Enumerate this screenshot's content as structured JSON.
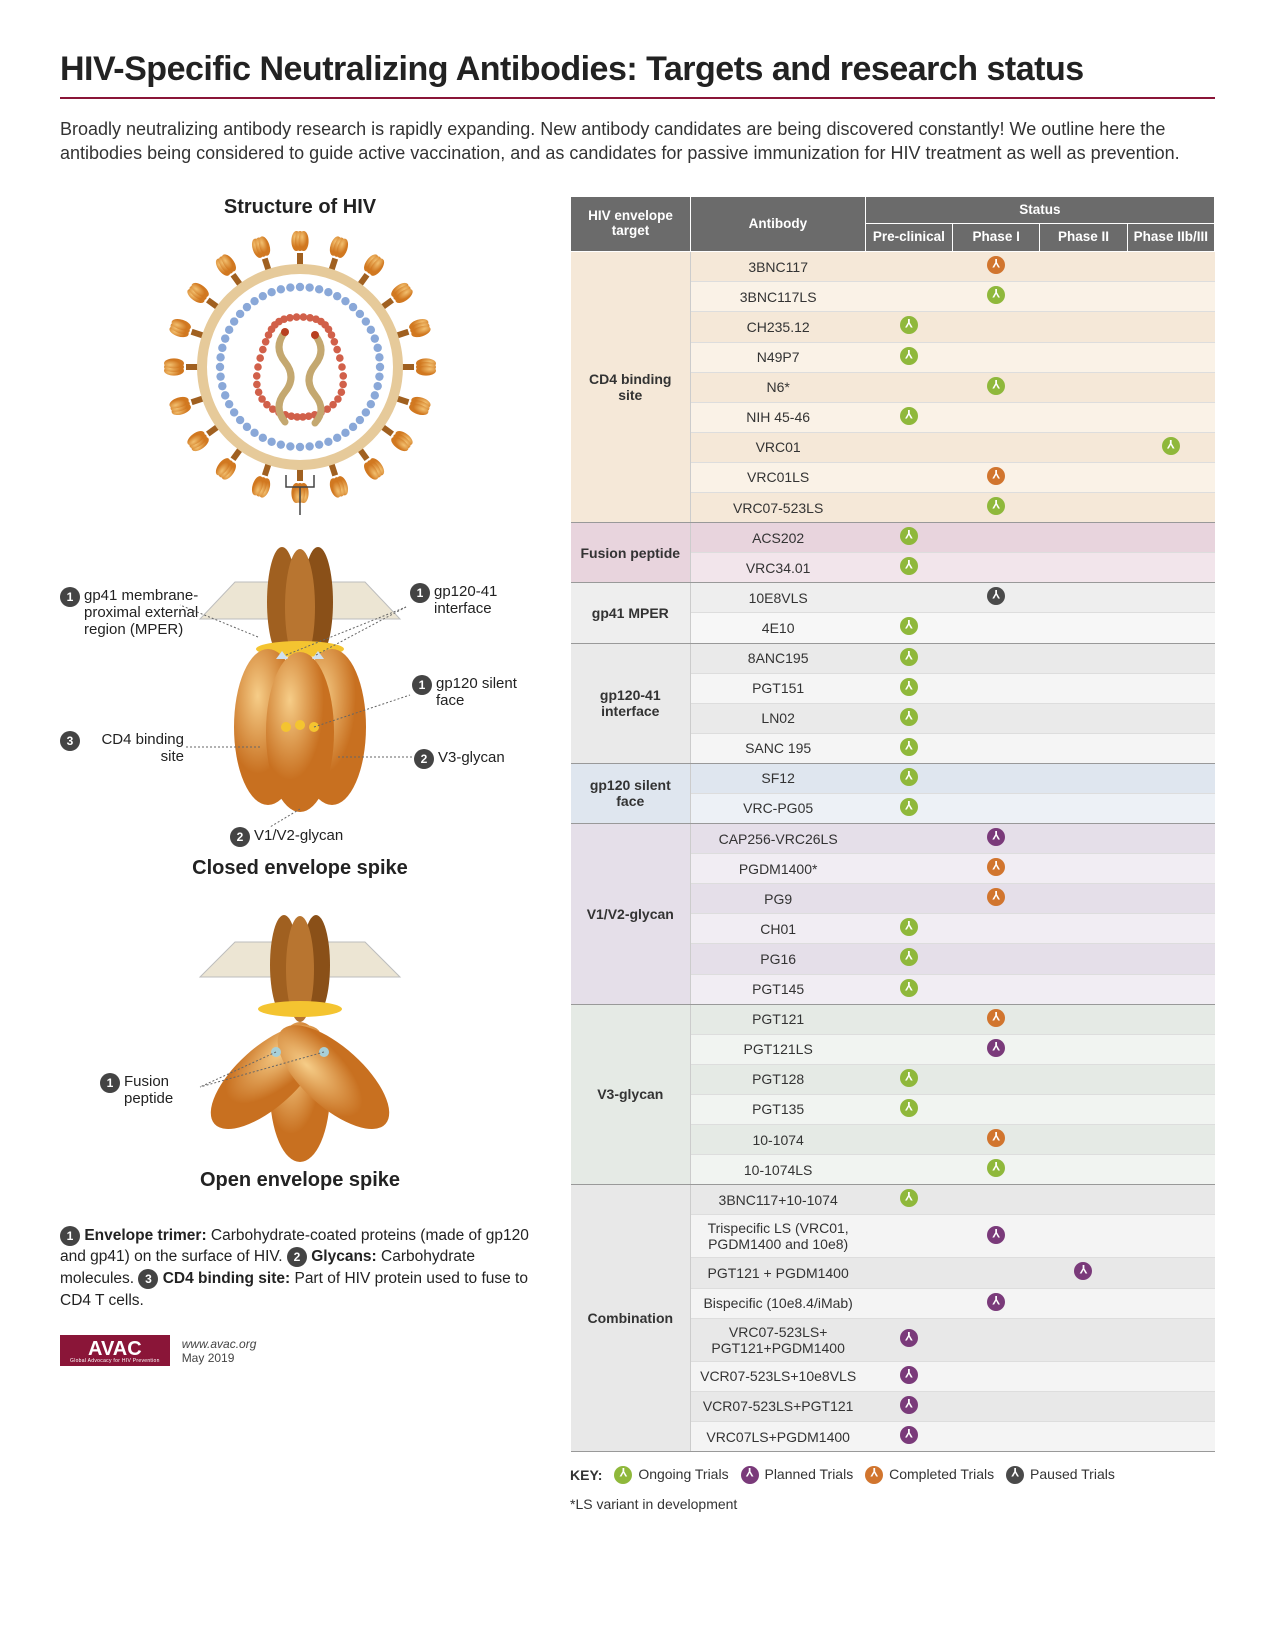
{
  "title": "HIV-Specific Neutralizing Antibodies: Targets and research status",
  "intro": "Broadly neutralizing antibody research is rapidly expanding. New antibody candidates are being discovered constantly! We outline here the antibodies being considered to guide active vaccination, and as candidates for passive immunization for HIV treatment as well as prevention.",
  "diagram": {
    "structure_title": "Structure of HIV",
    "closed_title": "Closed envelope spike",
    "open_title": "Open envelope spike",
    "callouts": {
      "mper": {
        "num": "1",
        "text": "gp41 membrane-proximal external region (MPER)"
      },
      "interface": {
        "num": "1",
        "text": "gp120-41 interface"
      },
      "silent": {
        "num": "1",
        "text": "gp120 silent face"
      },
      "v3": {
        "num": "2",
        "text": "V3-glycan"
      },
      "v1v2": {
        "num": "2",
        "text": "V1/V2-glycan"
      },
      "cd4": {
        "num": "3",
        "text": "CD4 binding site"
      },
      "fusion": {
        "num": "1",
        "text": "Fusion peptide"
      }
    },
    "legend": {
      "n1": "1",
      "n1_label": "Envelope trimer:",
      "n1_text": " Carbohydrate-coated proteins (made of gp120 and gp41) on the surface of HIV. ",
      "n2": "2",
      "n2_label": "Glycans:",
      "n2_text": " Carbohydrate molecules. ",
      "n3": "3",
      "n3_label": "CD4 binding site:",
      "n3_text": " Part of HIV protein used to fuse to CD4 T cells."
    }
  },
  "table": {
    "headers": {
      "target": "HIV envelope target",
      "antibody": "Antibody",
      "status": "Status",
      "preclinical": "Pre-clinical",
      "phase1": "Phase I",
      "phase2": "Phase II",
      "phase2b3": "Phase IIb/III"
    },
    "status_colors": {
      "ongoing": "#8fb83b",
      "planned": "#7a3a7a",
      "completed": "#d1752e",
      "paused": "#4a4a4a"
    },
    "group_colors": {
      "cd4": {
        "odd": "#f5e8d8",
        "even": "#faf2e7"
      },
      "fusion": {
        "odd": "#e8d4dd",
        "even": "#f2e5eb"
      },
      "mper": {
        "odd": "#eeeeee",
        "even": "#f7f7f7"
      },
      "interface": {
        "odd": "#eaeaea",
        "even": "#f5f5f5"
      },
      "silent": {
        "odd": "#dfe6ef",
        "even": "#edf1f6"
      },
      "v1v2": {
        "odd": "#e5dfe9",
        "even": "#f1edf3"
      },
      "v3": {
        "odd": "#e5eae5",
        "even": "#f1f4f1"
      },
      "combo": {
        "odd": "#e8e8e8",
        "even": "#f4f4f4"
      }
    },
    "groups": [
      {
        "target": "CD4 binding site",
        "color": "cd4",
        "rows": [
          {
            "ab": "3BNC117",
            "status": {
              "phase1": "completed"
            }
          },
          {
            "ab": "3BNC117LS",
            "status": {
              "phase1": "ongoing"
            }
          },
          {
            "ab": "CH235.12",
            "status": {
              "preclinical": "ongoing"
            }
          },
          {
            "ab": "N49P7",
            "status": {
              "preclinical": "ongoing"
            }
          },
          {
            "ab": "N6*",
            "status": {
              "phase1": "ongoing"
            }
          },
          {
            "ab": "NIH 45-46",
            "status": {
              "preclinical": "ongoing"
            }
          },
          {
            "ab": "VRC01",
            "status": {
              "phase2b3": "ongoing"
            }
          },
          {
            "ab": "VRC01LS",
            "status": {
              "phase1": "completed"
            }
          },
          {
            "ab": "VRC07-523LS",
            "status": {
              "phase1": "ongoing"
            }
          }
        ]
      },
      {
        "target": "Fusion peptide",
        "color": "fusion",
        "rows": [
          {
            "ab": "ACS202",
            "status": {
              "preclinical": "ongoing"
            }
          },
          {
            "ab": "VRC34.01",
            "status": {
              "preclinical": "ongoing"
            }
          }
        ]
      },
      {
        "target": "gp41 MPER",
        "color": "mper",
        "rows": [
          {
            "ab": "10E8VLS",
            "status": {
              "phase1": "paused"
            }
          },
          {
            "ab": "4E10",
            "status": {
              "preclinical": "ongoing"
            }
          }
        ]
      },
      {
        "target": "gp120-41 interface",
        "color": "interface",
        "rows": [
          {
            "ab": "8ANC195",
            "status": {
              "preclinical": "ongoing"
            }
          },
          {
            "ab": "PGT151",
            "status": {
              "preclinical": "ongoing"
            }
          },
          {
            "ab": "LN02",
            "status": {
              "preclinical": "ongoing"
            }
          },
          {
            "ab": "SANC 195",
            "status": {
              "preclinical": "ongoing"
            }
          }
        ]
      },
      {
        "target": "gp120 silent face",
        "color": "silent",
        "rows": [
          {
            "ab": "SF12",
            "status": {
              "preclinical": "ongoing"
            }
          },
          {
            "ab": "VRC-PG05",
            "status": {
              "preclinical": "ongoing"
            }
          }
        ]
      },
      {
        "target": "V1/V2-glycan",
        "color": "v1v2",
        "rows": [
          {
            "ab": "CAP256-VRC26LS",
            "status": {
              "phase1": "planned"
            }
          },
          {
            "ab": "PGDM1400*",
            "status": {
              "phase1": "completed"
            }
          },
          {
            "ab": "PG9",
            "status": {
              "phase1": "completed"
            }
          },
          {
            "ab": "CH01",
            "status": {
              "preclinical": "ongoing"
            }
          },
          {
            "ab": "PG16",
            "status": {
              "preclinical": "ongoing"
            }
          },
          {
            "ab": "PGT145",
            "status": {
              "preclinical": "ongoing"
            }
          }
        ]
      },
      {
        "target": "V3-glycan",
        "color": "v3",
        "rows": [
          {
            "ab": "PGT121",
            "status": {
              "phase1": "completed"
            }
          },
          {
            "ab": "PGT121LS",
            "status": {
              "phase1": "planned"
            }
          },
          {
            "ab": "PGT128",
            "status": {
              "preclinical": "ongoing"
            }
          },
          {
            "ab": "PGT135",
            "status": {
              "preclinical": "ongoing"
            }
          },
          {
            "ab": "10-1074",
            "status": {
              "phase1": "completed"
            }
          },
          {
            "ab": "10-1074LS",
            "status": {
              "phase1": "ongoing"
            }
          }
        ]
      },
      {
        "target": "Combination",
        "color": "combo",
        "rows": [
          {
            "ab": "3BNC117+10-1074",
            "status": {
              "preclinical": "ongoing"
            }
          },
          {
            "ab": "Trispecific LS (VRC01, PGDM1400 and 10e8)",
            "status": {
              "phase1": "planned"
            }
          },
          {
            "ab": "PGT121 + PGDM1400",
            "status": {
              "phase2": "planned"
            }
          },
          {
            "ab": "Bispecific (10e8.4/iMab)",
            "status": {
              "phase1": "planned"
            }
          },
          {
            "ab": "VRC07-523LS+ PGT121+PGDM1400",
            "status": {
              "preclinical": "planned"
            }
          },
          {
            "ab": "VCR07-523LS+10e8VLS",
            "status": {
              "preclinical": "planned"
            }
          },
          {
            "ab": "VCR07-523LS+PGT121",
            "status": {
              "preclinical": "planned"
            }
          },
          {
            "ab": "VRC07LS+PGDM1400",
            "status": {
              "preclinical": "planned"
            }
          }
        ]
      }
    ],
    "key": {
      "label": "KEY:",
      "ongoing": "Ongoing Trials",
      "planned": "Planned Trials",
      "completed": "Completed Trials",
      "paused": "Paused Trials",
      "ls_note": "*LS variant in development"
    }
  },
  "footer": {
    "logo": "AVAC",
    "logo_sub": "Global Advocacy for HIV Prevention",
    "url": "www.avac.org",
    "date": "May 2019"
  },
  "svg_colors": {
    "spike_dark": "#a06020",
    "spike_mid": "#c87830",
    "spike_light": "#e8a55a",
    "gp120": "#e8a040",
    "gp120_grad_a": "#f2c070",
    "gp120_grad_b": "#d17820",
    "membrane": "#e6ca9a",
    "capsid": "#8aa8d8",
    "core": "#d1604a",
    "rna": "#c4a870",
    "callout_line": "#666666",
    "badge_bg": "#444444"
  }
}
